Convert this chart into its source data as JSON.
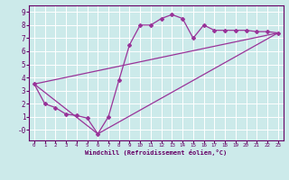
{
  "xlabel": "Windchill (Refroidissement éolien,°C)",
  "bg_color": "#cceaea",
  "line_color": "#993399",
  "grid_color": "#ffffff",
  "xlim": [
    -0.5,
    23.5
  ],
  "ylim": [
    -0.8,
    9.5
  ],
  "xticks": [
    0,
    1,
    2,
    3,
    4,
    5,
    6,
    7,
    8,
    9,
    10,
    11,
    12,
    13,
    14,
    15,
    16,
    17,
    18,
    19,
    20,
    21,
    22,
    23
  ],
  "yticks": [
    0,
    1,
    2,
    3,
    4,
    5,
    6,
    7,
    8,
    9
  ],
  "line1_x": [
    0,
    1,
    2,
    3,
    4,
    5,
    6,
    7,
    8,
    9,
    10,
    11,
    12,
    13,
    14,
    15,
    16,
    17,
    18,
    19,
    20,
    21,
    22,
    23
  ],
  "line1_y": [
    3.5,
    2.0,
    1.7,
    1.2,
    1.1,
    0.9,
    -0.3,
    1.0,
    3.8,
    6.5,
    8.0,
    8.0,
    8.5,
    8.8,
    8.5,
    7.0,
    8.0,
    7.6,
    7.6,
    7.6,
    7.6,
    7.5,
    7.5,
    7.4
  ],
  "line2_x": [
    0,
    6,
    23
  ],
  "line2_y": [
    3.5,
    -0.3,
    7.4
  ],
  "line3_x": [
    0,
    23
  ],
  "line3_y": [
    3.5,
    7.4
  ]
}
